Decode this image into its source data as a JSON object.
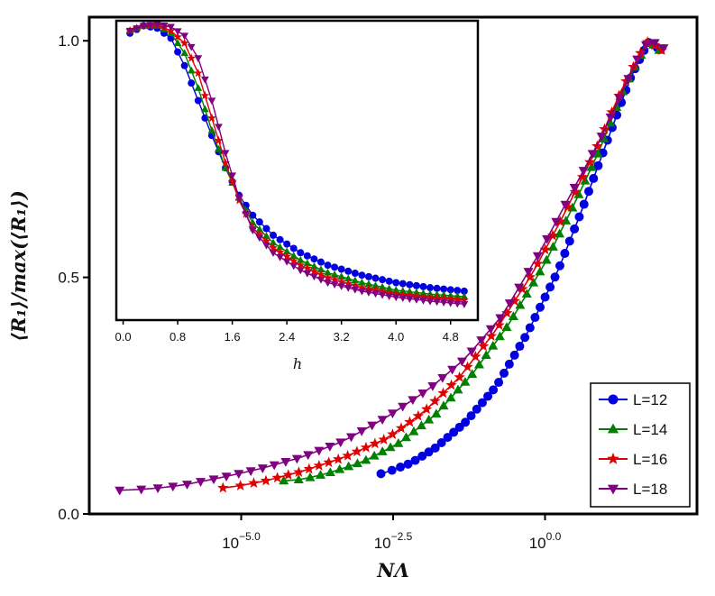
{
  "chart_data": [
    {
      "id": "main",
      "type": "line",
      "xscale": "log10",
      "xlabel": "NΛ",
      "ylabel": "⟨R₁⟩/max(⟨R₁⟩)",
      "xlim": [
        -7.5,
        2.5
      ],
      "ylim": [
        0,
        1.05
      ],
      "xticks": [
        {
          "v": -5.0,
          "base": "10",
          "exp": "−5.0"
        },
        {
          "v": -2.5,
          "base": "10",
          "exp": "−2.5"
        },
        {
          "v": 0.0,
          "base": "10",
          "exp": "0.0"
        }
      ],
      "yticks": [
        {
          "v": 0.0,
          "label": "0.0"
        },
        {
          "v": 0.5,
          "label": "0.5"
        },
        {
          "v": 1.0,
          "label": "1.0"
        }
      ],
      "legend_position": "bottom-right",
      "series": [
        {
          "name": "L=12",
          "color": "#0000e0",
          "marker": "circle",
          "anchors": [
            [
              -2.7,
              0.085
            ],
            [
              -2.5,
              0.093
            ],
            [
              -2.2,
              0.108
            ],
            [
              -1.8,
              0.14
            ],
            [
              -1.3,
              0.195
            ],
            [
              -0.8,
              0.27
            ],
            [
              -0.3,
              0.38
            ],
            [
              0.2,
              0.51
            ],
            [
              0.6,
              0.64
            ],
            [
              1.0,
              0.78
            ],
            [
              1.4,
              0.92
            ],
            [
              1.65,
              0.985
            ],
            [
              1.72,
              1.0
            ],
            [
              1.85,
              0.985
            ]
          ]
        },
        {
          "name": "L=14",
          "color": "#008000",
          "marker": "triangle-up",
          "anchors": [
            [
              -4.3,
              0.07
            ],
            [
              -4.0,
              0.073
            ],
            [
              -3.6,
              0.085
            ],
            [
              -3.0,
              0.11
            ],
            [
              -2.4,
              0.15
            ],
            [
              -1.8,
              0.21
            ],
            [
              -1.2,
              0.295
            ],
            [
              -0.6,
              0.4
            ],
            [
              0.0,
              0.53
            ],
            [
              0.5,
              0.66
            ],
            [
              0.9,
              0.77
            ],
            [
              1.3,
              0.9
            ],
            [
              1.6,
              0.975
            ],
            [
              1.7,
              1.0
            ],
            [
              1.88,
              0.98
            ]
          ]
        },
        {
          "name": "L=16",
          "color": "#e00000",
          "marker": "star",
          "anchors": [
            [
              -5.3,
              0.055
            ],
            [
              -5.0,
              0.06
            ],
            [
              -4.6,
              0.07
            ],
            [
              -4.0,
              0.09
            ],
            [
              -3.3,
              0.12
            ],
            [
              -2.6,
              0.16
            ],
            [
              -2.0,
              0.215
            ],
            [
              -1.4,
              0.29
            ],
            [
              -0.8,
              0.39
            ],
            [
              -0.2,
              0.51
            ],
            [
              0.3,
              0.63
            ],
            [
              0.8,
              0.76
            ],
            [
              1.2,
              0.88
            ],
            [
              1.55,
              0.97
            ],
            [
              1.7,
              1.0
            ],
            [
              1.92,
              0.98
            ]
          ]
        },
        {
          "name": "L=18",
          "color": "#800080",
          "marker": "triangle-down",
          "anchors": [
            [
              -7.0,
              0.05
            ],
            [
              -6.5,
              0.053
            ],
            [
              -6.0,
              0.06
            ],
            [
              -5.4,
              0.075
            ],
            [
              -4.7,
              0.095
            ],
            [
              -4.0,
              0.12
            ],
            [
              -3.3,
              0.155
            ],
            [
              -2.6,
              0.205
            ],
            [
              -1.9,
              0.265
            ],
            [
              -1.3,
              0.33
            ],
            [
              -0.7,
              0.42
            ],
            [
              -0.1,
              0.55
            ],
            [
              0.4,
              0.67
            ],
            [
              0.9,
              0.79
            ],
            [
              1.3,
              0.9
            ],
            [
              1.6,
              0.985
            ],
            [
              1.75,
              1.0
            ],
            [
              1.95,
              0.985
            ]
          ]
        }
      ]
    },
    {
      "id": "inset",
      "type": "line",
      "xlabel": "h",
      "xlim": [
        -0.1,
        5.2
      ],
      "ylim": [
        0.42,
        1.02
      ],
      "xticks": [
        {
          "v": 0.0,
          "label": "0.0"
        },
        {
          "v": 0.8,
          "label": "0.8"
        },
        {
          "v": 1.6,
          "label": "1.6"
        },
        {
          "v": 2.4,
          "label": "2.4"
        },
        {
          "v": 3.2,
          "label": "3.2"
        },
        {
          "v": 4.0,
          "label": "4.0"
        },
        {
          "v": 4.8,
          "label": "4.8"
        }
      ],
      "h_range": [
        0.1,
        5.0
      ],
      "h_count": 50,
      "series": [
        {
          "name": "L=12",
          "color": "#0000e0",
          "marker": "circle",
          "anchors": [
            [
              0.1,
              0.995
            ],
            [
              0.3,
              1.01
            ],
            [
              0.5,
              1.005
            ],
            [
              0.7,
              0.985
            ],
            [
              0.9,
              0.93
            ],
            [
              1.1,
              0.86
            ],
            [
              1.3,
              0.79
            ],
            [
              1.5,
              0.725
            ],
            [
              1.7,
              0.67
            ],
            [
              1.9,
              0.63
            ],
            [
              2.2,
              0.59
            ],
            [
              2.6,
              0.555
            ],
            [
              3.0,
              0.53
            ],
            [
              3.5,
              0.51
            ],
            [
              4.0,
              0.495
            ],
            [
              4.5,
              0.485
            ],
            [
              5.0,
              0.478
            ]
          ]
        },
        {
          "name": "L=14",
          "color": "#008000",
          "marker": "triangle-up",
          "anchors": [
            [
              0.1,
              1.0
            ],
            [
              0.3,
              1.01
            ],
            [
              0.5,
              1.01
            ],
            [
              0.7,
              0.995
            ],
            [
              0.9,
              0.955
            ],
            [
              1.1,
              0.885
            ],
            [
              1.3,
              0.8
            ],
            [
              1.5,
              0.725
            ],
            [
              1.7,
              0.665
            ],
            [
              1.9,
              0.615
            ],
            [
              2.2,
              0.575
            ],
            [
              2.6,
              0.54
            ],
            [
              3.0,
              0.515
            ],
            [
              3.5,
              0.495
            ],
            [
              4.0,
              0.48
            ],
            [
              4.5,
              0.472
            ],
            [
              5.0,
              0.467
            ]
          ]
        },
        {
          "name": "L=16",
          "color": "#e00000",
          "marker": "star",
          "anchors": [
            [
              0.1,
              1.0
            ],
            [
              0.3,
              1.01
            ],
            [
              0.5,
              1.012
            ],
            [
              0.7,
              1.0
            ],
            [
              0.9,
              0.975
            ],
            [
              1.1,
              0.915
            ],
            [
              1.3,
              0.825
            ],
            [
              1.5,
              0.735
            ],
            [
              1.7,
              0.66
            ],
            [
              1.9,
              0.605
            ],
            [
              2.2,
              0.565
            ],
            [
              2.6,
              0.53
            ],
            [
              3.0,
              0.505
            ],
            [
              3.5,
              0.485
            ],
            [
              4.0,
              0.472
            ],
            [
              4.5,
              0.465
            ],
            [
              5.0,
              0.46
            ]
          ]
        },
        {
          "name": "L=18",
          "color": "#800080",
          "marker": "triangle-down",
          "anchors": [
            [
              0.1,
              1.0
            ],
            [
              0.3,
              1.01
            ],
            [
              0.5,
              1.013
            ],
            [
              0.7,
              1.008
            ],
            [
              0.9,
              0.99
            ],
            [
              1.1,
              0.945
            ],
            [
              1.3,
              0.86
            ],
            [
              1.5,
              0.755
            ],
            [
              1.7,
              0.665
            ],
            [
              1.9,
              0.6
            ],
            [
              2.2,
              0.555
            ],
            [
              2.6,
              0.52
            ],
            [
              3.0,
              0.495
            ],
            [
              3.5,
              0.478
            ],
            [
              4.0,
              0.466
            ],
            [
              4.5,
              0.458
            ],
            [
              5.0,
              0.452
            ]
          ]
        }
      ]
    }
  ]
}
